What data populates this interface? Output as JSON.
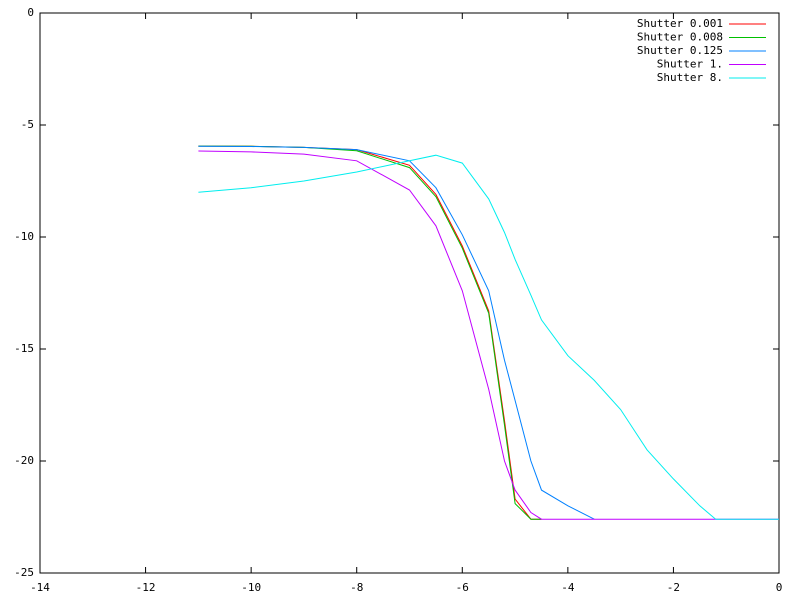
{
  "chart_data": {
    "type": "line",
    "x": [
      -11,
      -10,
      -9,
      -8,
      -7,
      -6.5,
      -6,
      -5.5,
      -5.2,
      -5,
      -4.7,
      -4.5,
      -4,
      -3.5,
      -3,
      -2.5,
      -2,
      -1.5,
      -1.2,
      -0.5,
      0
    ],
    "series": [
      {
        "name": "Shutter 0.001",
        "color": "#ff0000",
        "values": [
          -5.94,
          -5.95,
          -6.0,
          -6.1,
          -6.8,
          -8.1,
          -10.4,
          -13.3,
          -18.2,
          -21.7,
          -22.6,
          -22.6,
          null,
          null,
          null,
          null,
          null,
          null,
          null,
          null,
          null
        ]
      },
      {
        "name": "Shutter 0.008",
        "color": "#00c000",
        "values": [
          -5.94,
          -5.95,
          -6.0,
          -6.15,
          -6.9,
          -8.2,
          -10.5,
          -13.4,
          -18.4,
          -21.9,
          -22.6,
          -22.6,
          null,
          null,
          null,
          null,
          null,
          null,
          null,
          null,
          null
        ]
      },
      {
        "name": "Shutter 0.125",
        "color": "#0080ff",
        "values": [
          -5.95,
          -5.96,
          -6.0,
          -6.1,
          -6.6,
          -7.8,
          -9.9,
          -12.4,
          -15.5,
          -17.3,
          -20.0,
          -21.3,
          -22.0,
          -22.6,
          null,
          null,
          null,
          null,
          null,
          null,
          null
        ]
      },
      {
        "name": "Shutter 1.",
        "color": "#c000ff",
        "values": [
          -6.16,
          -6.2,
          -6.3,
          -6.6,
          -7.9,
          -9.5,
          -12.4,
          -16.8,
          -20.0,
          -21.3,
          -22.3,
          -22.6,
          -22.6,
          -22.6,
          -22.6,
          -22.6,
          -22.6,
          -22.6,
          -22.6,
          -22.6,
          -22.6
        ]
      },
      {
        "name": "Shutter 8.",
        "color": "#00eeee",
        "values": [
          -8.0,
          -7.8,
          -7.5,
          -7.1,
          -6.6,
          -6.35,
          -6.7,
          -8.3,
          -9.8,
          -11.0,
          -12.6,
          -13.7,
          -15.3,
          -16.4,
          -17.7,
          -19.5,
          -20.8,
          -22.0,
          -22.6,
          -22.6,
          -22.6
        ]
      }
    ],
    "xlim": [
      -14,
      0
    ],
    "xticks": [
      -14,
      -12,
      -10,
      -8,
      -6,
      -4,
      -2,
      0
    ],
    "ylim": [
      -25,
      0
    ],
    "yticks": [
      -25,
      -20,
      -15,
      -10,
      -5,
      0
    ],
    "legend": "top-right"
  }
}
